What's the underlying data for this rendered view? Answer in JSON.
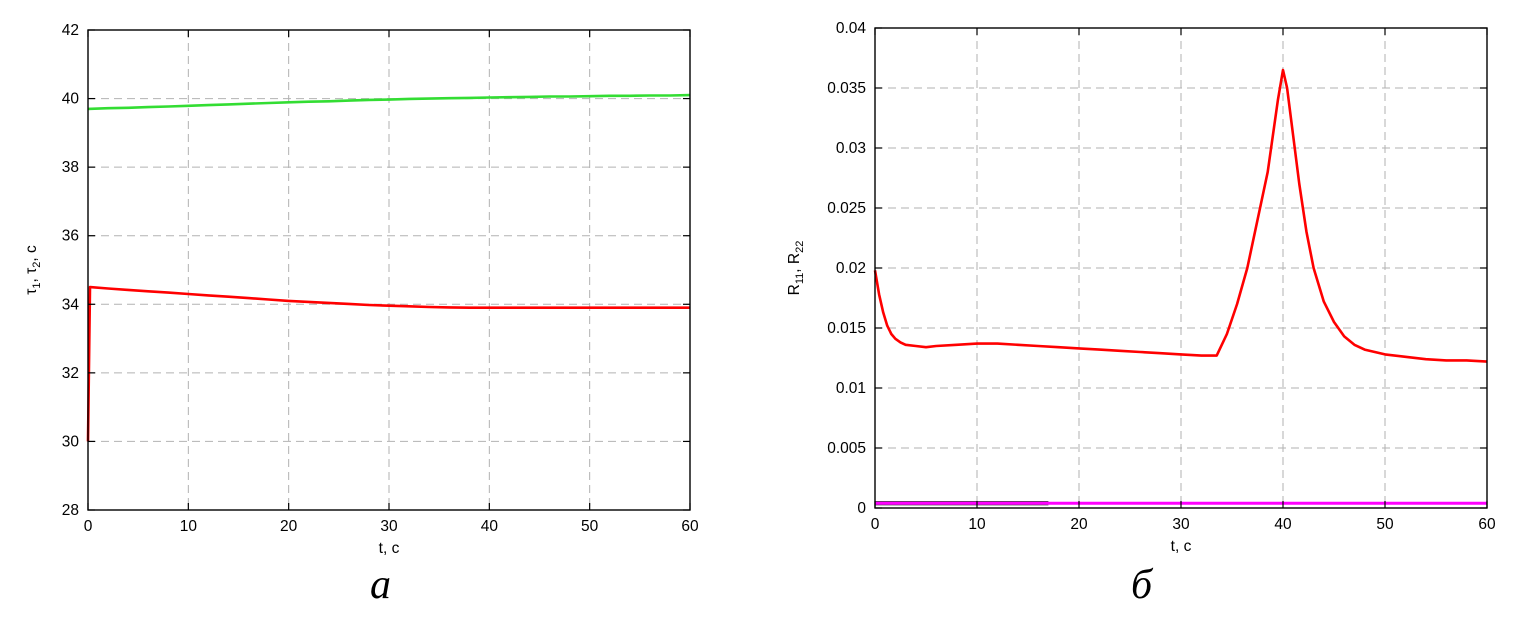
{
  "page": {
    "background": "#ffffff"
  },
  "chart_data": [
    {
      "type": "line",
      "caption": "а",
      "title": "",
      "xlabel": "t, с",
      "ylabel": "τ~1~, τ~2~, с",
      "xlim": [
        0,
        60
      ],
      "ylim": [
        28,
        42
      ],
      "xticks": [
        0,
        10,
        20,
        30,
        40,
        50,
        60
      ],
      "yticks": [
        28,
        30,
        32,
        34,
        36,
        38,
        40,
        42
      ],
      "xtick_labels": [
        "0",
        "10",
        "20",
        "30",
        "40",
        "50",
        "60"
      ],
      "ytick_labels": [
        "28",
        "30",
        "32",
        "34",
        "36",
        "38",
        "40",
        "42"
      ],
      "grid": true,
      "grid_color": "#b2b2b2",
      "series": [
        {
          "name": "tau2-green",
          "color": "#33dd33",
          "width": 2.6,
          "x": [
            0,
            2,
            4,
            6,
            8,
            10,
            12,
            14,
            16,
            18,
            20,
            22,
            24,
            26,
            28,
            30,
            32,
            34,
            36,
            38,
            40,
            42,
            44,
            46,
            48,
            50,
            52,
            54,
            56,
            58,
            60
          ],
          "y": [
            39.7,
            39.72,
            39.73,
            39.75,
            39.77,
            39.79,
            39.81,
            39.83,
            39.85,
            39.87,
            39.89,
            39.91,
            39.92,
            39.94,
            39.96,
            39.97,
            39.99,
            40.0,
            40.01,
            40.02,
            40.03,
            40.04,
            40.05,
            40.06,
            40.06,
            40.07,
            40.08,
            40.08,
            40.09,
            40.09,
            40.1
          ]
        },
        {
          "name": "tau1-red",
          "color": "#ff0000",
          "width": 2.6,
          "x": [
            0,
            0.2,
            2,
            4,
            6,
            8,
            10,
            12,
            14,
            16,
            18,
            20,
            22,
            24,
            26,
            28,
            30,
            32,
            34,
            36,
            38,
            40,
            44,
            48,
            52,
            56,
            60
          ],
          "y": [
            30.0,
            34.5,
            34.46,
            34.42,
            34.38,
            34.34,
            34.3,
            34.26,
            34.22,
            34.18,
            34.14,
            34.1,
            34.07,
            34.04,
            34.01,
            33.98,
            33.96,
            33.94,
            33.92,
            33.91,
            33.9,
            33.9,
            33.9,
            33.9,
            33.9,
            33.9,
            33.9
          ]
        }
      ]
    },
    {
      "type": "line",
      "caption": "б",
      "title": "",
      "xlabel": "t, с",
      "ylabel": "R~11~, R~22~",
      "xlim": [
        0,
        60
      ],
      "ylim": [
        0,
        0.04
      ],
      "xticks": [
        0,
        10,
        20,
        30,
        40,
        50,
        60
      ],
      "yticks": [
        0,
        0.005,
        0.01,
        0.015,
        0.02,
        0.025,
        0.03,
        0.035,
        0.04
      ],
      "xtick_labels": [
        "0",
        "10",
        "20",
        "30",
        "40",
        "50",
        "60"
      ],
      "ytick_labels": [
        "0",
        "0.005",
        "0.01",
        "0.015",
        "0.02",
        "0.025",
        "0.03",
        "0.035",
        "0.04"
      ],
      "grid": true,
      "grid_color": "#b2b2b2",
      "series": [
        {
          "name": "R22-initial-dark",
          "color": "#444444",
          "width": 4.4,
          "x": [
            0,
            17
          ],
          "y": [
            0.0004,
            0.0004
          ]
        },
        {
          "name": "R22-magenta",
          "color": "#ff00ff",
          "width": 3,
          "x": [
            0,
            60
          ],
          "y": [
            0.0004,
            0.0004
          ]
        },
        {
          "name": "R11-red",
          "color": "#ff0000",
          "width": 2.6,
          "x": [
            0,
            0.4,
            0.8,
            1.2,
            1.6,
            2,
            2.5,
            3,
            4,
            5,
            6,
            8,
            10,
            12,
            14,
            16,
            18,
            20,
            22,
            24,
            26,
            28,
            30,
            32,
            33.5,
            34.5,
            35.5,
            36.5,
            37.5,
            38.5,
            39.5,
            40,
            40.4,
            41,
            41.6,
            42.3,
            43,
            44,
            45,
            46,
            47,
            48,
            50,
            52,
            54,
            56,
            58,
            60
          ],
          "y": [
            0.0198,
            0.0178,
            0.0163,
            0.0152,
            0.0145,
            0.0141,
            0.0138,
            0.0136,
            0.0135,
            0.0134,
            0.0135,
            0.0136,
            0.0137,
            0.0137,
            0.0136,
            0.0135,
            0.0134,
            0.0133,
            0.0132,
            0.0131,
            0.013,
            0.0129,
            0.0128,
            0.0127,
            0.0127,
            0.0145,
            0.017,
            0.02,
            0.024,
            0.028,
            0.034,
            0.0365,
            0.035,
            0.031,
            0.027,
            0.023,
            0.02,
            0.0172,
            0.0155,
            0.0143,
            0.0136,
            0.0132,
            0.0128,
            0.0126,
            0.0124,
            0.0123,
            0.0123,
            0.0122
          ]
        }
      ]
    }
  ]
}
